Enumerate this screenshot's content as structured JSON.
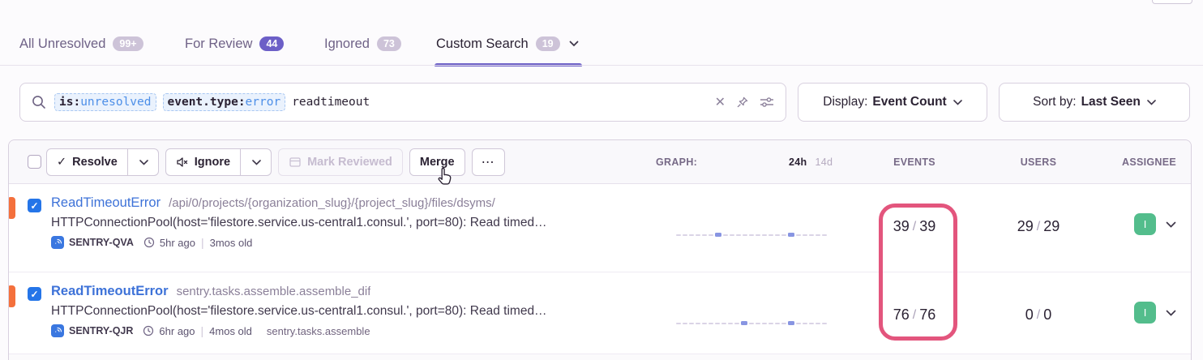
{
  "glyphs": {
    "check": "✓",
    "close": "✕",
    "more": "⋯",
    "slash": "/",
    "pipe": "|"
  },
  "colors": {
    "purple": "#6C5FC7",
    "blue-link": "#3D72D8",
    "token-blue": "#4D8FE8",
    "token-bg": "#EAF2FD",
    "cb-blue": "#2575E8",
    "orange": "#F4703C",
    "green": "#53BD8C",
    "pink": "#E3557D",
    "text-dark": "#2B2233",
    "page-bg": "#FCFBFD"
  },
  "tabs": [
    {
      "label": "All Unresolved",
      "badge": "99+"
    },
    {
      "label": "For Review",
      "badge": "44"
    },
    {
      "label": "Ignored",
      "badge": "73"
    },
    {
      "label": "Custom Search",
      "badge": "19"
    }
  ],
  "search": {
    "tokens": [
      {
        "key": "is:",
        "value": "unresolved"
      },
      {
        "key": "event.type:",
        "value": "error"
      }
    ],
    "free_text": "readtimeout"
  },
  "display_button": {
    "prefix": "Display:",
    "value": "Event Count"
  },
  "sort_button": {
    "prefix": "Sort by:",
    "value": "Last Seen"
  },
  "toolbar": {
    "resolve_label": "Resolve",
    "ignore_label": "Ignore",
    "mark_reviewed_label": "Mark Reviewed",
    "merge_label": "Merge"
  },
  "columns": {
    "graph_label": "GRAPH:",
    "graph_24h": "24h",
    "graph_14d": "14d",
    "events": "EVENTS",
    "users": "USERS",
    "assignee": "ASSIGNEE"
  },
  "issues": [
    {
      "title": "ReadTimeoutError",
      "subtitle": "/api/0/projects/{organization_slug}/{project_slug}/files/dsyms/",
      "message": "HTTPConnectionPool(host='filestore.service.us-central1.consul.', port=80): Read timed…",
      "project": "SENTRY-QVA",
      "age": "5hr ago",
      "old": "3mos old",
      "annotation": "",
      "events_count": "39",
      "events_total": "39",
      "users_count": "29",
      "users_total": "29",
      "assignee_initial": "I",
      "spark": {
        "count": 23,
        "markers": [
          6,
          17
        ]
      }
    },
    {
      "title": "ReadTimeoutError",
      "subtitle": "sentry.tasks.assemble.assemble_dif",
      "message": "HTTPConnectionPool(host='filestore.service.us-central1.consul.', port=80): Read timed…",
      "project": "SENTRY-QJR",
      "age": "6hr ago",
      "old": "4mos old",
      "annotation": "sentry.tasks.assemble",
      "events_count": "76",
      "events_total": "76",
      "users_count": "0",
      "users_total": "0",
      "assignee_initial": "I",
      "spark": {
        "count": 23,
        "markers": [
          10,
          17
        ]
      }
    }
  ]
}
